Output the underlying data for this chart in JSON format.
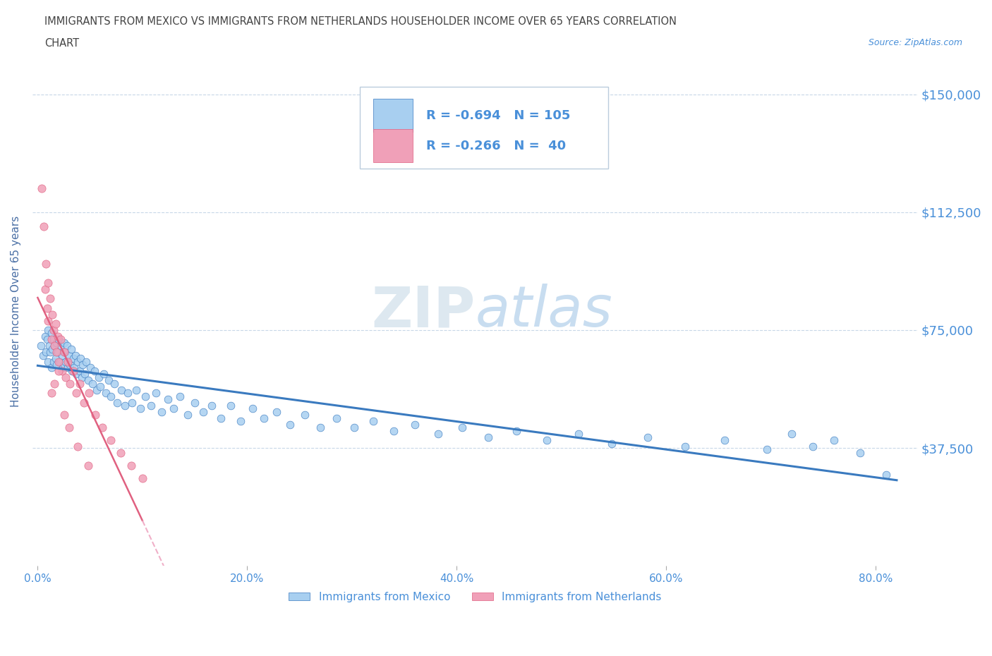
{
  "title_line1": "IMMIGRANTS FROM MEXICO VS IMMIGRANTS FROM NETHERLANDS HOUSEHOLDER INCOME OVER 65 YEARS CORRELATION",
  "title_line2": "CHART",
  "source": "Source: ZipAtlas.com",
  "ylabel": "Householder Income Over 65 years",
  "xlabel_ticks": [
    "0.0%",
    "20.0%",
    "40.0%",
    "60.0%",
    "80.0%"
  ],
  "xlabel_vals": [
    0.0,
    0.2,
    0.4,
    0.6,
    0.8
  ],
  "ytick_labels": [
    "$37,500",
    "$75,000",
    "$112,500",
    "$150,000"
  ],
  "ytick_vals": [
    37500,
    75000,
    112500,
    150000
  ],
  "ylim": [
    0,
    162000
  ],
  "xlim": [
    -0.005,
    0.84
  ],
  "mexico_R": -0.694,
  "mexico_N": 105,
  "netherlands_R": -0.266,
  "netherlands_N": 40,
  "mexico_color": "#a8cff0",
  "netherlands_color": "#f0a0b8",
  "mexico_line_color": "#3a7abf",
  "netherlands_line_color": "#e06080",
  "netherlands_line_dash_color": "#f0b0c8",
  "grid_color": "#c8d8e8",
  "title_color": "#333333",
  "axis_label_color": "#4a6fa5",
  "tick_color": "#4a90d9",
  "source_color": "#4a90d9",
  "watermark": "ZIPatlas",
  "watermark_color": "#dde8f0",
  "legend_label_mexico": "Immigrants from Mexico",
  "legend_label_netherlands": "Immigrants from Netherlands",
  "mexico_x": [
    0.003,
    0.005,
    0.007,
    0.008,
    0.009,
    0.01,
    0.01,
    0.011,
    0.012,
    0.013,
    0.013,
    0.014,
    0.015,
    0.015,
    0.016,
    0.017,
    0.018,
    0.018,
    0.019,
    0.02,
    0.021,
    0.022,
    0.023,
    0.024,
    0.025,
    0.025,
    0.026,
    0.027,
    0.028,
    0.029,
    0.03,
    0.031,
    0.032,
    0.033,
    0.034,
    0.035,
    0.036,
    0.037,
    0.038,
    0.04,
    0.041,
    0.042,
    0.043,
    0.045,
    0.046,
    0.048,
    0.05,
    0.052,
    0.054,
    0.056,
    0.058,
    0.06,
    0.063,
    0.065,
    0.068,
    0.07,
    0.073,
    0.076,
    0.08,
    0.083,
    0.086,
    0.09,
    0.094,
    0.098,
    0.103,
    0.108,
    0.113,
    0.118,
    0.124,
    0.13,
    0.136,
    0.143,
    0.15,
    0.158,
    0.166,
    0.175,
    0.184,
    0.194,
    0.205,
    0.216,
    0.228,
    0.241,
    0.255,
    0.27,
    0.285,
    0.302,
    0.32,
    0.34,
    0.36,
    0.382,
    0.405,
    0.43,
    0.457,
    0.486,
    0.516,
    0.548,
    0.582,
    0.618,
    0.656,
    0.696,
    0.72,
    0.74,
    0.76,
    0.785,
    0.81
  ],
  "mexico_y": [
    70000,
    67000,
    73000,
    68000,
    72000,
    75000,
    65000,
    70000,
    68000,
    74000,
    63000,
    69000,
    72000,
    65000,
    70000,
    66000,
    71000,
    64000,
    68000,
    72000,
    65000,
    70000,
    67000,
    63000,
    71000,
    64000,
    68000,
    65000,
    70000,
    63000,
    67000,
    64000,
    69000,
    62000,
    66000,
    63000,
    67000,
    61000,
    65000,
    62000,
    66000,
    60000,
    64000,
    61000,
    65000,
    59000,
    63000,
    58000,
    62000,
    56000,
    60000,
    57000,
    61000,
    55000,
    59000,
    54000,
    58000,
    52000,
    56000,
    51000,
    55000,
    52000,
    56000,
    50000,
    54000,
    51000,
    55000,
    49000,
    53000,
    50000,
    54000,
    48000,
    52000,
    49000,
    51000,
    47000,
    51000,
    46000,
    50000,
    47000,
    49000,
    45000,
    48000,
    44000,
    47000,
    44000,
    46000,
    43000,
    45000,
    42000,
    44000,
    41000,
    43000,
    40000,
    42000,
    39000,
    41000,
    38000,
    40000,
    37000,
    42000,
    38000,
    40000,
    36000,
    29000
  ],
  "netherlands_x": [
    0.004,
    0.006,
    0.007,
    0.008,
    0.009,
    0.01,
    0.01,
    0.012,
    0.013,
    0.014,
    0.015,
    0.016,
    0.017,
    0.018,
    0.019,
    0.02,
    0.022,
    0.023,
    0.025,
    0.027,
    0.029,
    0.031,
    0.034,
    0.037,
    0.04,
    0.044,
    0.049,
    0.055,
    0.062,
    0.07,
    0.079,
    0.089,
    0.1,
    0.013,
    0.016,
    0.02,
    0.025,
    0.03,
    0.038,
    0.048
  ],
  "netherlands_y": [
    120000,
    108000,
    88000,
    96000,
    82000,
    78000,
    90000,
    85000,
    72000,
    80000,
    75000,
    70000,
    77000,
    68000,
    73000,
    65000,
    72000,
    62000,
    68000,
    60000,
    65000,
    58000,
    62000,
    55000,
    58000,
    52000,
    55000,
    48000,
    44000,
    40000,
    36000,
    32000,
    28000,
    55000,
    58000,
    62000,
    48000,
    44000,
    38000,
    32000
  ]
}
